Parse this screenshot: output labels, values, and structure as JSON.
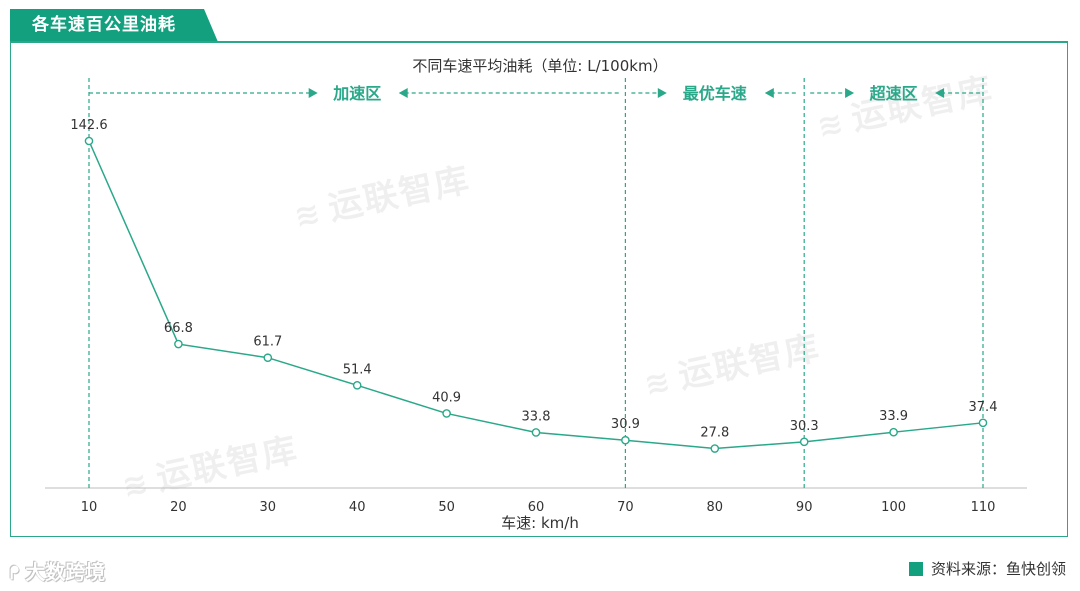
{
  "header": {
    "title": "各车速百公里油耗"
  },
  "chart_data": {
    "type": "line",
    "title": "不同车速平均油耗（单位: L/100km）",
    "xlabel": "车速: km/h",
    "ylabel": "",
    "x": [
      10,
      20,
      30,
      40,
      50,
      60,
      70,
      80,
      90,
      100,
      110
    ],
    "series": [
      {
        "values": [
          142.6,
          66.8,
          61.7,
          51.4,
          40.9,
          33.8,
          30.9,
          27.8,
          30.3,
          33.9,
          37.4
        ]
      }
    ],
    "xlim": [
      5,
      115
    ],
    "ylim": [
      0,
      160
    ],
    "grid": false,
    "color": "#2aa889",
    "zones": [
      {
        "label": "加速区",
        "from": 10,
        "to": 70
      },
      {
        "label": "最优车速",
        "from": 70,
        "to": 90
      },
      {
        "label": "超速区",
        "from": 90,
        "to": 110
      }
    ],
    "zone_boundaries": [
      10,
      70,
      90,
      110
    ]
  },
  "watermark": {
    "text": "运联智库",
    "icon": "wave-logo-icon"
  },
  "footer": {
    "brand": "大数跨境",
    "brand_icon": "weibo-logo-icon",
    "source": "资料来源：鱼快创领"
  }
}
